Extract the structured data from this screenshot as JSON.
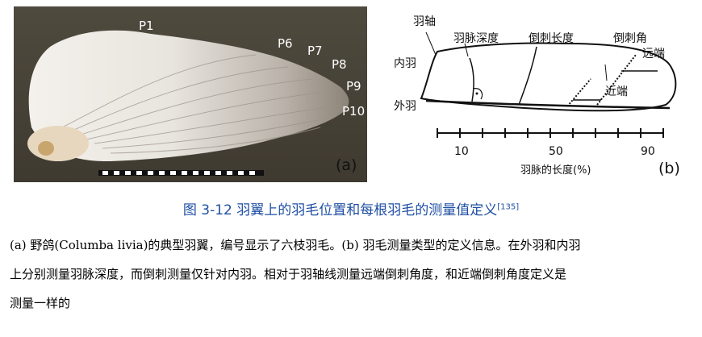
{
  "figure": {
    "panel_a": {
      "feather_labels": [
        "P1",
        "P6",
        "P7",
        "P8",
        "P9",
        "P10"
      ],
      "panel_label": "(a)"
    },
    "panel_b": {
      "labels": {
        "rachis": "羽轴",
        "vane_depth": "羽脉深度",
        "barb_length": "倒刺长度",
        "barb_angle": "倒刺角",
        "distal": "远端",
        "inner_vane": "内羽",
        "proximal": "近端",
        "outer_vane": "外羽"
      },
      "axis_ticks": [
        "10",
        "50",
        "90"
      ],
      "axis_label": "羽脉的长度(%)",
      "panel_label": "(b)"
    }
  },
  "caption": {
    "text": "图 3-12  羽翼上的羽毛位置和每根羽毛的测量值定义",
    "ref": "[135]"
  },
  "body_lines": [
    "(a) 野鸽(Columba livia)的典型羽翼，编号显示了六枝羽毛。(b) 羽毛测量类型的定义信息。在外羽和内羽",
    "上分别测量羽脉深度，而倒刺测量仅针对内羽。相对于羽轴线测量远端倒刺角度，和近端倒刺角度定义是",
    "测量一样的"
  ]
}
